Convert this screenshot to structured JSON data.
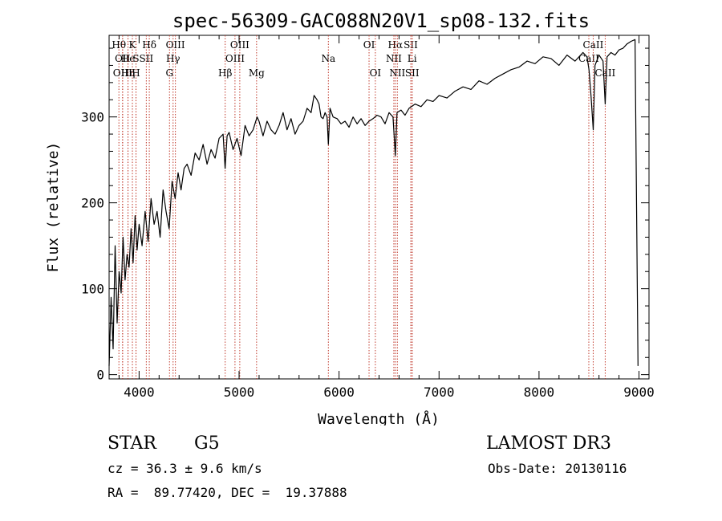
{
  "chart_data": {
    "type": "line",
    "title": "spec-56309-GAC088N20V1_sp08-132.fits",
    "xlabel": "Wavelength (Å)",
    "ylabel": "Flux (relative)",
    "xlim": [
      3700,
      9100
    ],
    "ylim": [
      -5,
      395
    ],
    "xticks": [
      4000,
      5000,
      6000,
      7000,
      8000,
      9000
    ],
    "yticks": [
      0,
      100,
      200,
      300
    ],
    "series": [
      {
        "name": "flux",
        "x": [
          3700,
          3720,
          3740,
          3760,
          3780,
          3800,
          3820,
          3840,
          3860,
          3880,
          3900,
          3920,
          3940,
          3960,
          3980,
          4000,
          4030,
          4060,
          4090,
          4120,
          4150,
          4180,
          4210,
          4240,
          4270,
          4300,
          4330,
          4360,
          4390,
          4420,
          4450,
          4480,
          4520,
          4560,
          4600,
          4640,
          4680,
          4720,
          4760,
          4800,
          4840,
          4860,
          4880,
          4900,
          4940,
          4980,
          5020,
          5060,
          5100,
          5140,
          5180,
          5200,
          5240,
          5280,
          5320,
          5360,
          5400,
          5440,
          5480,
          5520,
          5560,
          5600,
          5640,
          5680,
          5720,
          5750,
          5780,
          5800,
          5820,
          5840,
          5860,
          5880,
          5893,
          5910,
          5940,
          5980,
          6020,
          6060,
          6100,
          6140,
          6180,
          6220,
          6260,
          6300,
          6340,
          6380,
          6420,
          6460,
          6500,
          6540,
          6563,
          6580,
          6620,
          6660,
          6700,
          6760,
          6820,
          6880,
          6940,
          7000,
          7080,
          7160,
          7240,
          7320,
          7400,
          7480,
          7560,
          7640,
          7720,
          7800,
          7880,
          7960,
          8040,
          8120,
          8200,
          8280,
          8360,
          8440,
          8480,
          8500,
          8520,
          8542,
          8560,
          8600,
          8640,
          8662,
          8680,
          8720,
          8760,
          8800,
          8840,
          8880,
          8920,
          8960,
          8990
        ],
        "values": [
          10,
          90,
          30,
          150,
          60,
          120,
          95,
          160,
          110,
          140,
          125,
          170,
          130,
          185,
          145,
          175,
          150,
          190,
          155,
          205,
          175,
          190,
          160,
          215,
          190,
          170,
          225,
          205,
          235,
          215,
          240,
          245,
          232,
          258,
          250,
          268,
          245,
          262,
          252,
          275,
          280,
          240,
          278,
          282,
          262,
          275,
          255,
          290,
          278,
          285,
          300,
          295,
          278,
          295,
          285,
          280,
          290,
          305,
          285,
          298,
          280,
          290,
          295,
          310,
          305,
          325,
          320,
          315,
          300,
          298,
          305,
          300,
          268,
          310,
          300,
          298,
          292,
          295,
          288,
          300,
          292,
          298,
          290,
          295,
          298,
          302,
          300,
          292,
          305,
          300,
          255,
          305,
          308,
          302,
          310,
          315,
          312,
          320,
          318,
          325,
          322,
          330,
          335,
          332,
          342,
          338,
          345,
          350,
          355,
          358,
          365,
          362,
          370,
          368,
          360,
          372,
          365,
          375,
          370,
          355,
          325,
          285,
          360,
          372,
          365,
          315,
          370,
          375,
          372,
          378,
          380,
          385,
          388,
          390,
          10
        ]
      }
    ],
    "lines": [
      {
        "wl": 3798,
        "label": "Hθ",
        "row": 0
      },
      {
        "wl": 3835,
        "label": "OII",
        "row": 1
      },
      {
        "wl": 3835,
        "label": "OIII",
        "row": 2
      },
      {
        "wl": 3889,
        "label": "He",
        "row": 1
      },
      {
        "wl": 3889,
        "label": "Hη",
        "row": 2
      },
      {
        "wl": 3933,
        "label": "K",
        "row": 0
      },
      {
        "wl": 3969,
        "label": "S",
        "row": 1
      },
      {
        "wl": 3969,
        "label": "H",
        "row": 2
      },
      {
        "wl": 4102,
        "label": "Hδ",
        "row": 0
      },
      {
        "wl": 4072,
        "label": "SII",
        "row": 1
      },
      {
        "wl": 4340,
        "label": "Hγ",
        "row": 1
      },
      {
        "wl": 4363,
        "label": "OIII",
        "row": 0
      },
      {
        "wl": 4304,
        "label": "G",
        "row": 2
      },
      {
        "wl": 4861,
        "label": "Hβ",
        "row": 2
      },
      {
        "wl": 4959,
        "label": "OIII",
        "row": 1
      },
      {
        "wl": 5007,
        "label": "OIII",
        "row": 0
      },
      {
        "wl": 5175,
        "label": "Mg",
        "row": 2
      },
      {
        "wl": 5893,
        "label": "Na",
        "row": 1
      },
      {
        "wl": 6300,
        "label": "OI",
        "row": 0
      },
      {
        "wl": 6363,
        "label": "OI",
        "row": 2
      },
      {
        "wl": 6563,
        "label": "Hα",
        "row": 0
      },
      {
        "wl": 6548,
        "label": "NII",
        "row": 1
      },
      {
        "wl": 6583,
        "label": "NII",
        "row": 2
      },
      {
        "wl": 6717,
        "label": "SII",
        "row": 0
      },
      {
        "wl": 6731,
        "label": "SII",
        "row": 2
      },
      {
        "wl": 6730,
        "label": "Li",
        "row": 1
      },
      {
        "wl": 8498,
        "label": "CaII",
        "row": 1
      },
      {
        "wl": 8542,
        "label": "CaII",
        "row": 0
      },
      {
        "wl": 8662,
        "label": "CaII",
        "row": 2
      }
    ]
  },
  "info": {
    "object_class": "STAR",
    "subclass": "G5",
    "survey": "LAMOST DR3",
    "cz": "cz = 36.3 ± 9.6 km/s",
    "obs_date": "Obs-Date: 20130116",
    "coords": "RA =  89.77420, DEC =  19.37888"
  },
  "colors": {
    "line_marker": "#c0392b",
    "spectrum": "#000000"
  }
}
